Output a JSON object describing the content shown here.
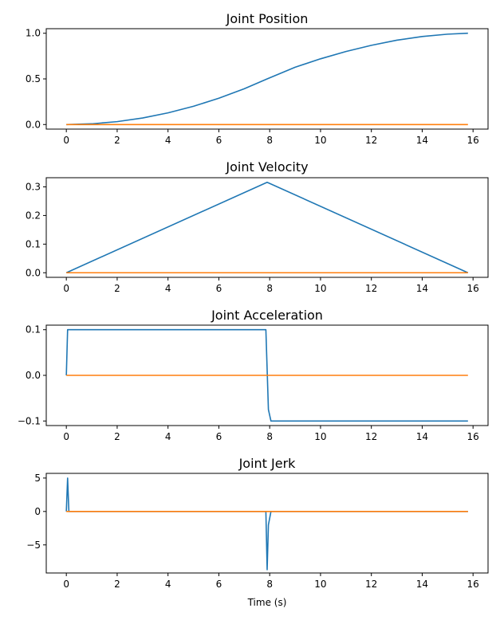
{
  "chart_data": [
    {
      "type": "line",
      "title": "Joint Position",
      "xlabel": "",
      "ylabel": "",
      "xlim": [
        -0.79,
        16.59
      ],
      "ylim": [
        -0.05,
        1.05
      ],
      "xticks": [
        0,
        2,
        4,
        6,
        8,
        10,
        12,
        14,
        16
      ],
      "xtick_labels": [
        "0",
        "2",
        "4",
        "6",
        "8",
        "10",
        "12",
        "14",
        "16"
      ],
      "yticks": [
        0.0,
        0.5,
        1.0
      ],
      "ytick_labels": [
        "0.0",
        "0.5",
        "1.0"
      ],
      "grid": false,
      "colors": [
        "#1f77b4",
        "#ff7f0e"
      ],
      "series": [
        {
          "x": [
            0,
            1,
            2,
            3,
            4,
            5,
            6,
            7,
            7.9,
            9,
            10,
            11,
            12,
            13,
            14,
            15,
            15.8
          ],
          "values": [
            0,
            0.008,
            0.032,
            0.072,
            0.128,
            0.2,
            0.288,
            0.392,
            0.5,
            0.628,
            0.72,
            0.8,
            0.868,
            0.924,
            0.964,
            0.99,
            1.0
          ]
        },
        {
          "x": [
            0,
            15.8
          ],
          "values": [
            0,
            0
          ]
        }
      ]
    },
    {
      "type": "line",
      "title": "Joint Velocity",
      "xlabel": "",
      "ylabel": "",
      "xlim": [
        -0.79,
        16.59
      ],
      "ylim": [
        -0.016,
        0.332
      ],
      "xticks": [
        0,
        2,
        4,
        6,
        8,
        10,
        12,
        14,
        16
      ],
      "xtick_labels": [
        "0",
        "2",
        "4",
        "6",
        "8",
        "10",
        "12",
        "14",
        "16"
      ],
      "yticks": [
        0.0,
        0.1,
        0.2,
        0.3
      ],
      "ytick_labels": [
        "0.0",
        "0.1",
        "0.2",
        "0.3"
      ],
      "grid": false,
      "colors": [
        "#1f77b4",
        "#ff7f0e"
      ],
      "series": [
        {
          "x": [
            0,
            7.9,
            15.8
          ],
          "values": [
            0,
            0.316,
            0
          ]
        },
        {
          "x": [
            0,
            15.8
          ],
          "values": [
            0,
            0
          ]
        }
      ]
    },
    {
      "type": "line",
      "title": "Joint Acceleration",
      "xlabel": "",
      "ylabel": "",
      "xlim": [
        -0.79,
        16.59
      ],
      "ylim": [
        -0.11,
        0.11
      ],
      "xticks": [
        0,
        2,
        4,
        6,
        8,
        10,
        12,
        14,
        16
      ],
      "xtick_labels": [
        "0",
        "2",
        "4",
        "6",
        "8",
        "10",
        "12",
        "14",
        "16"
      ],
      "yticks": [
        -0.1,
        0.0,
        0.1
      ],
      "ytick_labels": [
        "−0.1",
        "0.0",
        "0.1"
      ],
      "grid": false,
      "colors": [
        "#1f77b4",
        "#ff7f0e"
      ],
      "series": [
        {
          "x": [
            0,
            0.05,
            7.85,
            7.95,
            8.05,
            15.8
          ],
          "values": [
            0,
            0.1,
            0.1,
            -0.075,
            -0.1,
            -0.1
          ]
        },
        {
          "x": [
            0,
            15.8
          ],
          "values": [
            0,
            0
          ]
        }
      ]
    },
    {
      "type": "line",
      "title": "Joint Jerk",
      "xlabel": "Time (s)",
      "ylabel": "",
      "xlim": [
        -0.79,
        16.59
      ],
      "ylim": [
        -9.2,
        5.7
      ],
      "xticks": [
        0,
        2,
        4,
        6,
        8,
        10,
        12,
        14,
        16
      ],
      "xtick_labels": [
        "0",
        "2",
        "4",
        "6",
        "8",
        "10",
        "12",
        "14",
        "16"
      ],
      "yticks": [
        -5,
        0,
        5
      ],
      "ytick_labels": [
        "−5",
        "0",
        "5"
      ],
      "grid": false,
      "colors": [
        "#1f77b4",
        "#ff7f0e"
      ],
      "series": [
        {
          "x": [
            0,
            0.05,
            0.1,
            0.15,
            7.85,
            7.9,
            7.95,
            8.0,
            8.05,
            8.1,
            15.8
          ],
          "values": [
            0,
            5.0,
            0,
            0,
            0,
            -8.7,
            -2.0,
            -1.0,
            0,
            0,
            0
          ]
        },
        {
          "x": [
            0,
            15.8
          ],
          "values": [
            0,
            0
          ]
        }
      ]
    }
  ]
}
